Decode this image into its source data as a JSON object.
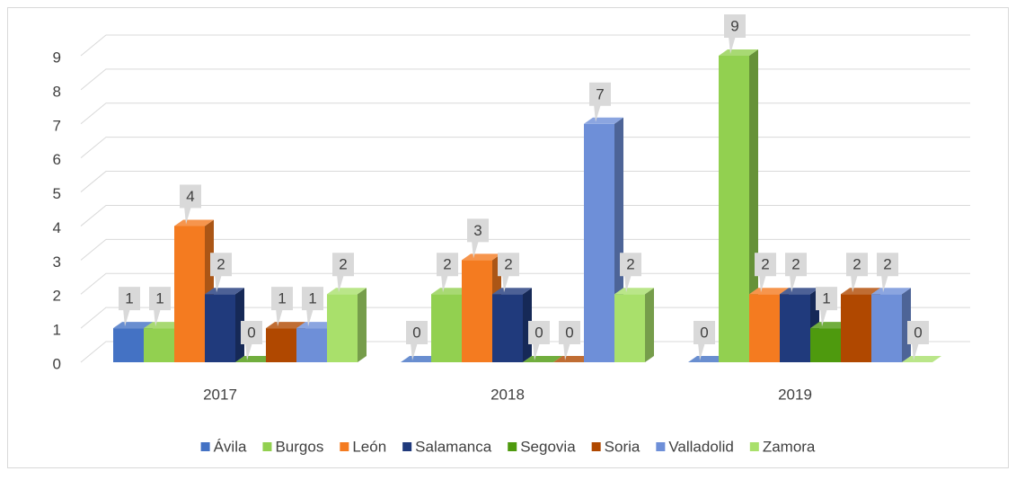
{
  "chart_data": {
    "type": "bar3d",
    "categories": [
      "2017",
      "2018",
      "2019"
    ],
    "series": [
      {
        "name": "Ávila",
        "color": "#4472c4",
        "values": [
          1,
          0,
          0
        ]
      },
      {
        "name": "Burgos",
        "color": "#92d050",
        "values": [
          1,
          2,
          9
        ]
      },
      {
        "name": "León",
        "color": "#f47b20",
        "values": [
          4,
          3,
          2
        ]
      },
      {
        "name": "Salamanca",
        "color": "#203a7c",
        "values": [
          2,
          2,
          2
        ]
      },
      {
        "name": "Segovia",
        "color": "#4e9a0e",
        "values": [
          0,
          0,
          1
        ]
      },
      {
        "name": "Soria",
        "color": "#b04800",
        "values": [
          1,
          0,
          2
        ]
      },
      {
        "name": "Valladolid",
        "color": "#6e8fd8",
        "values": [
          1,
          7,
          2
        ]
      },
      {
        "name": "Zamora",
        "color": "#a9e06b",
        "values": [
          2,
          2,
          0
        ]
      }
    ],
    "ylim": [
      0,
      9
    ],
    "yticks": [
      0,
      1,
      2,
      3,
      4,
      5,
      6,
      7,
      8,
      9
    ],
    "grid": true,
    "legend": "bottom"
  }
}
